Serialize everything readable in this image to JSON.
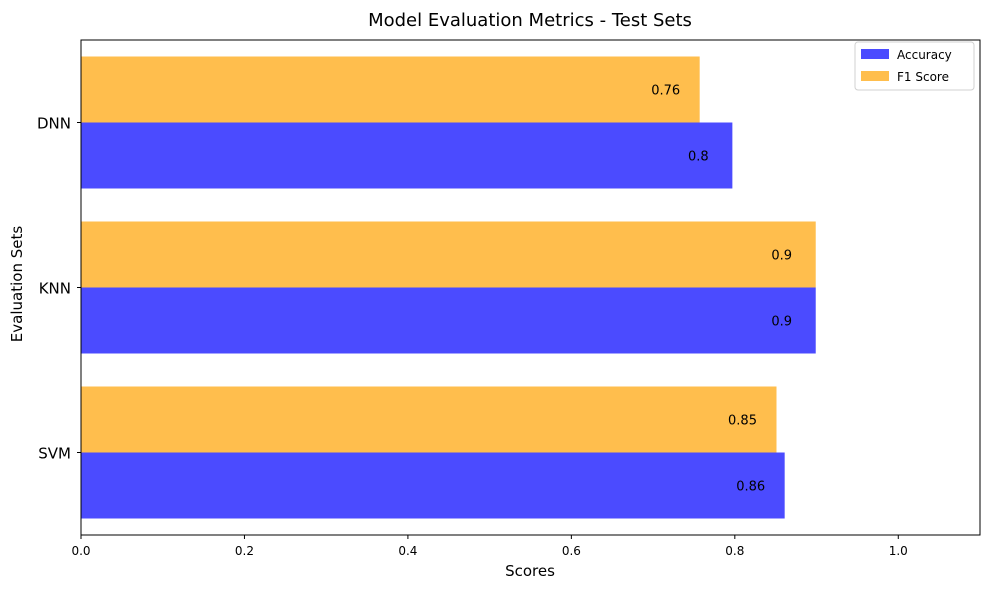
{
  "chart_data": {
    "type": "bar",
    "orientation": "horizontal",
    "title": "Model Evaluation Metrics - Test Sets",
    "xlabel": "Scores",
    "ylabel": "Evaluation Sets",
    "categories": [
      "DNN",
      "KNN",
      "SVM"
    ],
    "xlim": [
      0,
      1.1
    ],
    "xticks": [
      "0.0",
      "0.2",
      "0.4",
      "0.6",
      "0.8",
      "1.0"
    ],
    "grid": false,
    "legend_position": "top-right",
    "series": [
      {
        "name": "Accuracy",
        "color": "#4b4bff",
        "values": [
          0.797,
          0.899,
          0.861
        ],
        "labels": [
          "0.8",
          "0.9",
          "0.86"
        ]
      },
      {
        "name": "F1 Score",
        "color": "#ffbe4d",
        "values": [
          0.757,
          0.899,
          0.851
        ],
        "labels": [
          "0.76",
          "0.9",
          "0.85"
        ]
      }
    ]
  }
}
